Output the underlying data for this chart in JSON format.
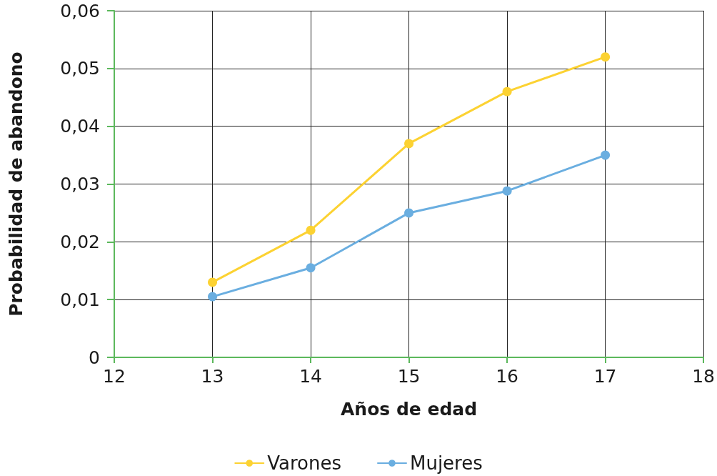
{
  "chart_data": {
    "type": "line",
    "xlabel": "Años de edad",
    "ylabel": "Probabilidad de abandono",
    "x": [
      13,
      14,
      15,
      16,
      17
    ],
    "series": [
      {
        "name": "Varones",
        "color": "#fcd232",
        "values": [
          0.013,
          0.022,
          0.037,
          0.046,
          0.052
        ]
      },
      {
        "name": "Mujeres",
        "color": "#6aaee0",
        "values": [
          0.0105,
          0.0155,
          0.025,
          0.0288,
          0.035
        ]
      }
    ],
    "xlim": [
      12,
      18
    ],
    "xticks": [
      12,
      13,
      14,
      15,
      16,
      17,
      18
    ],
    "ylim": [
      0,
      0.06
    ],
    "yticks": [
      {
        "value": 0,
        "label": "0"
      },
      {
        "value": 0.01,
        "label": "0,01"
      },
      {
        "value": 0.02,
        "label": "0,02"
      },
      {
        "value": 0.03,
        "label": "0,03"
      },
      {
        "value": 0.04,
        "label": "0,04"
      },
      {
        "value": 0.05,
        "label": "0,05"
      },
      {
        "value": 0.06,
        "label": "0,06"
      }
    ],
    "grid": true,
    "legend": "bottom",
    "marker": "circle",
    "line_style": "solid"
  }
}
